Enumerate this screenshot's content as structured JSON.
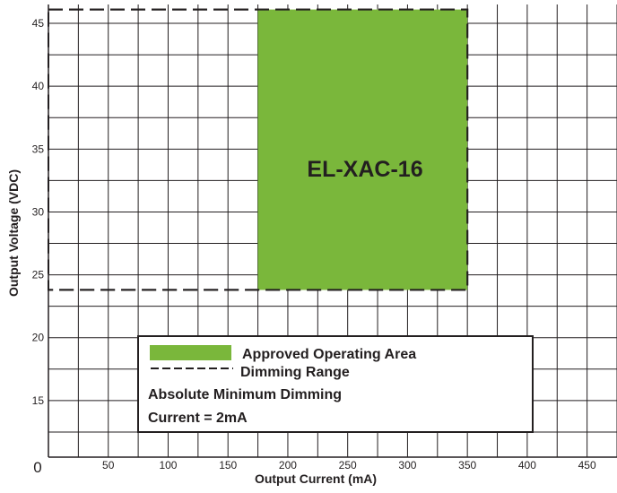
{
  "chart_data": {
    "type": "area",
    "title": "",
    "xlabel": "Output Current (mA)",
    "ylabel": "Output Voltage (VDC)",
    "origin_label": "0",
    "xlim": [
      0,
      475
    ],
    "ylim": [
      10.5,
      46.5
    ],
    "x_ticks": [
      50,
      100,
      150,
      200,
      250,
      300,
      350,
      400,
      450
    ],
    "y_ticks": [
      15,
      20,
      25,
      30,
      35,
      40,
      45
    ],
    "grid": true,
    "regions": [
      {
        "name": "Dimming Range",
        "style": "dashed",
        "x": [
          0,
          350
        ],
        "y": [
          23.8,
          46.1
        ]
      },
      {
        "name": "Approved Operating Area",
        "style": "filled",
        "color": "#7ab73b",
        "x": [
          175,
          350
        ],
        "y": [
          23.8,
          46.1
        ],
        "label": "EL-XAC-16"
      }
    ],
    "legend": {
      "placement": "bottom-center",
      "items": [
        {
          "type": "swatch",
          "label": "Approved Operating Area"
        },
        {
          "type": "dash",
          "label": "Dimming Range"
        }
      ],
      "note_line1": "Absolute Minimum Dimming",
      "note_line2": "Current = 2mA"
    }
  }
}
